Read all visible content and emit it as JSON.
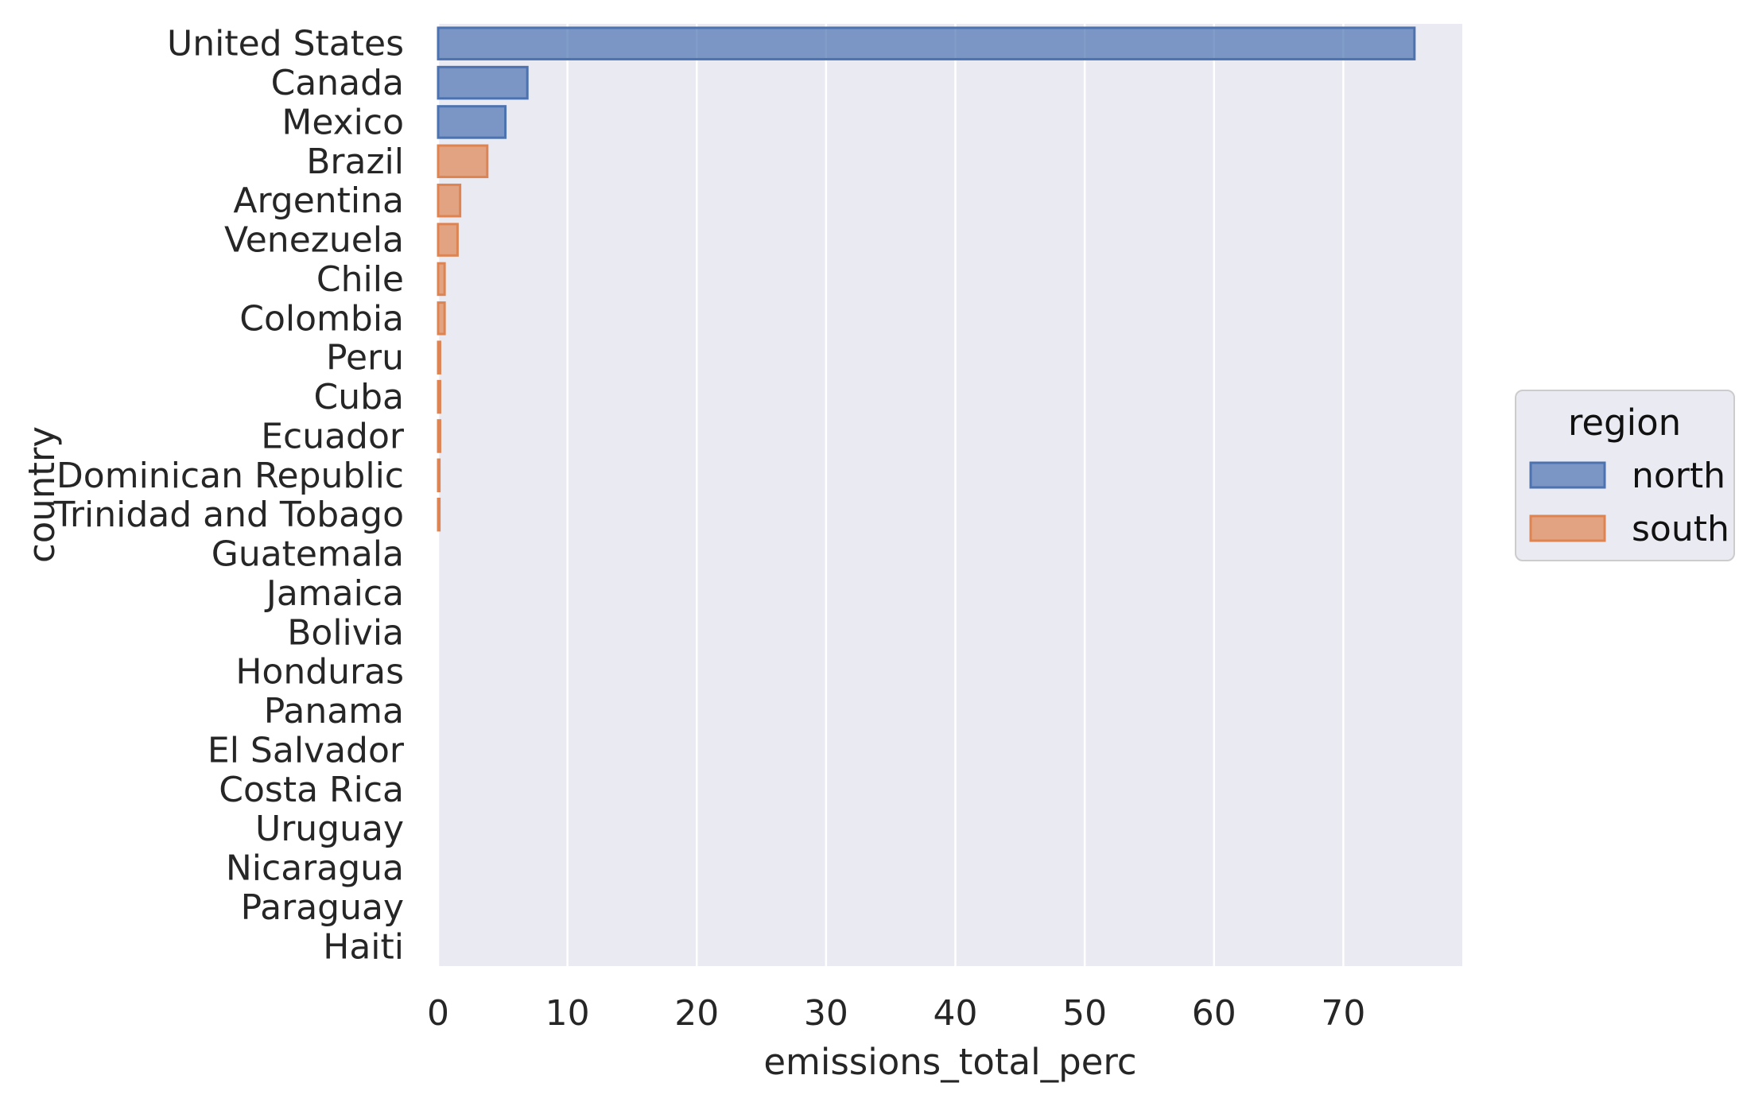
{
  "chart_data": {
    "type": "bar",
    "orientation": "horizontal",
    "xlabel": "emissions_total_perc",
    "ylabel": "country",
    "xlim": [
      0,
      79.2
    ],
    "xticks": [
      0,
      10,
      20,
      30,
      40,
      50,
      60,
      70
    ],
    "grid": true,
    "legend_position": "right",
    "legend_title": "region",
    "series_colors": {
      "north": "#4c72b0",
      "south": "#dd8452"
    },
    "series": [
      {
        "name": "north"
      },
      {
        "name": "south"
      }
    ],
    "bars": [
      {
        "country": "United States",
        "region": "north",
        "value": 75.5
      },
      {
        "country": "Canada",
        "region": "north",
        "value": 6.9
      },
      {
        "country": "Mexico",
        "region": "north",
        "value": 5.2
      },
      {
        "country": "Brazil",
        "region": "south",
        "value": 3.8
      },
      {
        "country": "Argentina",
        "region": "south",
        "value": 1.7
      },
      {
        "country": "Venezuela",
        "region": "south",
        "value": 1.5
      },
      {
        "country": "Chile",
        "region": "south",
        "value": 0.5
      },
      {
        "country": "Colombia",
        "region": "south",
        "value": 0.5
      },
      {
        "country": "Peru",
        "region": "south",
        "value": 0.15
      },
      {
        "country": "Cuba",
        "region": "south",
        "value": 0.15
      },
      {
        "country": "Ecuador",
        "region": "south",
        "value": 0.15
      },
      {
        "country": "Dominican Republic",
        "region": "south",
        "value": 0.1
      },
      {
        "country": "Trinidad and Tobago",
        "region": "south",
        "value": 0.1
      },
      {
        "country": "Guatemala",
        "region": "south",
        "value": 0.0
      },
      {
        "country": "Jamaica",
        "region": "south",
        "value": 0.0
      },
      {
        "country": "Bolivia",
        "region": "south",
        "value": 0.0
      },
      {
        "country": "Honduras",
        "region": "south",
        "value": 0.0
      },
      {
        "country": "Panama",
        "region": "south",
        "value": 0.0
      },
      {
        "country": "El Salvador",
        "region": "south",
        "value": 0.0
      },
      {
        "country": "Costa Rica",
        "region": "south",
        "value": 0.0
      },
      {
        "country": "Uruguay",
        "region": "south",
        "value": 0.0
      },
      {
        "country": "Nicaragua",
        "region": "south",
        "value": 0.0
      },
      {
        "country": "Paraguay",
        "region": "south",
        "value": 0.0
      },
      {
        "country": "Haiti",
        "region": "south",
        "value": 0.0
      }
    ]
  }
}
